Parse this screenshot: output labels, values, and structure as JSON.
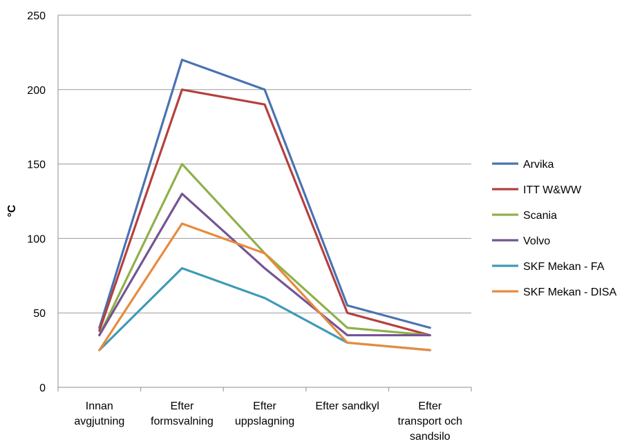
{
  "chart_data": {
    "type": "line",
    "title": "",
    "xlabel": "",
    "ylabel": "°C",
    "ylim": [
      0,
      250
    ],
    "yticks": [
      0,
      50,
      100,
      150,
      200,
      250
    ],
    "grid": true,
    "legend_position": "right",
    "categories": [
      [
        "Innan",
        "avgjutning"
      ],
      [
        "Efter",
        "formsvalning"
      ],
      [
        "Efter",
        "uppslagning"
      ],
      [
        "Efter sandkyl"
      ],
      [
        "Efter",
        "transport och",
        "sandsilo"
      ]
    ],
    "series": [
      {
        "name": "Arvika",
        "color": "#4a72b0",
        "values": [
          40,
          220,
          200,
          55,
          40
        ]
      },
      {
        "name": "ITT W&WW",
        "color": "#b5403e",
        "values": [
          38,
          200,
          190,
          50,
          35
        ]
      },
      {
        "name": "Scania",
        "color": "#8fb04a",
        "values": [
          35,
          150,
          90,
          40,
          35
        ]
      },
      {
        "name": "Volvo",
        "color": "#735494",
        "values": [
          35,
          130,
          80,
          35,
          35
        ]
      },
      {
        "name": "SKF Mekan - FA",
        "color": "#3e9ab7",
        "values": [
          25,
          80,
          60,
          30,
          25
        ]
      },
      {
        "name": "SKF Mekan - DISA",
        "color": "#e98a3c",
        "values": [
          25,
          110,
          90,
          30,
          25
        ]
      }
    ]
  }
}
